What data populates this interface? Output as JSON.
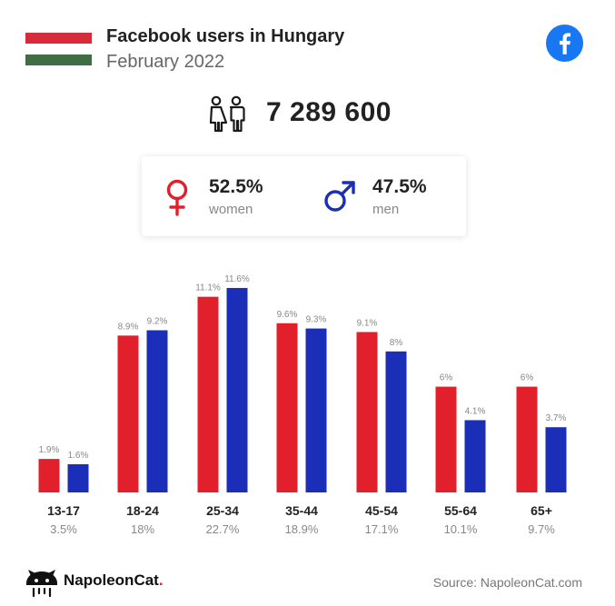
{
  "header": {
    "title": "Facebook users in Hungary",
    "subtitle": "February 2022"
  },
  "total_users": "7 289 600",
  "gender": {
    "women": {
      "pct": "52.5%",
      "label": "women"
    },
    "men": {
      "pct": "47.5%",
      "label": "men"
    }
  },
  "colors": {
    "women": "#e2202c",
    "men": "#1b2eb8",
    "flag_red": "#d52b3a",
    "flag_white": "#ffffff",
    "flag_green": "#3f6e45",
    "facebook_blue": "#1877f2"
  },
  "icons": [
    "hungary-flag",
    "facebook-icon",
    "people-icon",
    "female-symbol-icon",
    "male-symbol-icon",
    "napoleoncat-logo-icon"
  ],
  "chart_data": {
    "type": "bar",
    "categories": [
      "13-17",
      "18-24",
      "25-34",
      "35-44",
      "45-54",
      "55-64",
      "65+"
    ],
    "category_totals": [
      "3.5%",
      "18%",
      "22.7%",
      "18.9%",
      "17.1%",
      "10.1%",
      "9.7%"
    ],
    "series": [
      {
        "name": "women",
        "values": [
          1.9,
          8.9,
          11.1,
          9.6,
          9.1,
          6,
          6
        ],
        "labels": [
          "1.9%",
          "8.9%",
          "11.1%",
          "9.6%",
          "9.1%",
          "6%",
          "6%"
        ]
      },
      {
        "name": "men",
        "values": [
          1.6,
          9.2,
          11.6,
          9.3,
          8,
          4.1,
          3.7
        ],
        "labels": [
          "1.6%",
          "9.2%",
          "11.6%",
          "9.3%",
          "8%",
          "4.1%",
          "3.7%"
        ]
      }
    ],
    "ylim": [
      0,
      12
    ],
    "grid": false,
    "legend": "none"
  },
  "footer": {
    "brand": "NapoleonCat",
    "brand_dot": ".",
    "source": "Source: NapoleonCat.com"
  }
}
